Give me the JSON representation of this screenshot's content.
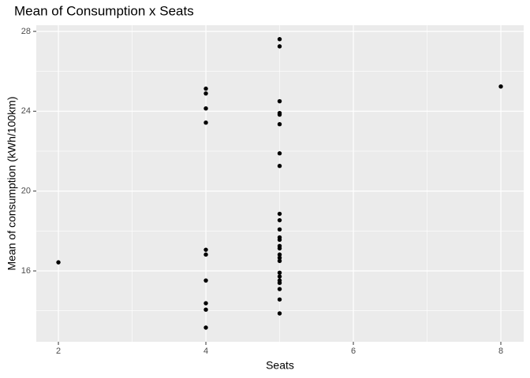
{
  "chart_data": {
    "type": "scatter",
    "title": "Mean of Consumption x Seats",
    "xlabel": "Seats",
    "ylabel": "Mean of consumption (kWh/100km)",
    "x": [
      2,
      4,
      4,
      4,
      4,
      4,
      4,
      4,
      4,
      4,
      4,
      5,
      5,
      5,
      5,
      5,
      5,
      5,
      5,
      5,
      5,
      5,
      5,
      5,
      5,
      5,
      5,
      5,
      5,
      5,
      5,
      5,
      5,
      5,
      5,
      5,
      8
    ],
    "values": [
      16.43,
      25.13,
      24.89,
      24.14,
      23.43,
      17.06,
      16.82,
      15.52,
      14.38,
      14.06,
      13.16,
      27.61,
      27.25,
      24.5,
      23.91,
      23.83,
      23.35,
      21.89,
      21.26,
      18.86,
      18.54,
      18.08,
      17.68,
      17.56,
      17.25,
      17.13,
      16.82,
      16.66,
      16.5,
      15.91,
      15.72,
      15.52,
      15.4,
      15.09,
      14.57,
      13.87,
      25.24
    ],
    "color": "#000000",
    "xlim": [
      1.7,
      8.31
    ],
    "ylim": [
      12.45,
      28.31
    ],
    "xticks": [
      2,
      4,
      6,
      8
    ],
    "yticks": [
      16,
      20,
      24,
      28
    ],
    "xminor": [
      3,
      5,
      7
    ],
    "yminor": [
      14,
      18,
      22,
      26
    ],
    "grid": true
  }
}
